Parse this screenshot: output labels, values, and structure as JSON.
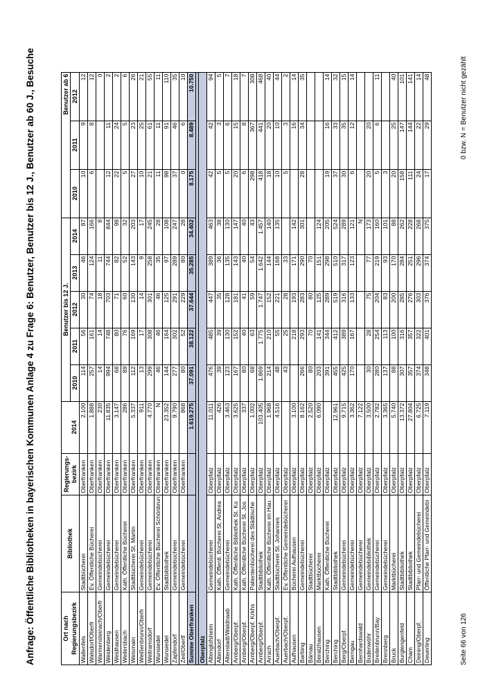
{
  "title": "Anfrage: Öffentliche Bibliotheken in bayerischen Kommunen Anlage 4 zu Frage 6: Benutzer, Benutzer bis 12 J., Benutzer ab 60 J., Besuche",
  "table": {
    "header": {
      "ort": "Ort nach",
      "ort_sub": "Regierungsbezirk",
      "bibliothek": "Bibliothek",
      "regbez": [
        "Regierungs-",
        "bezirk"
      ],
      "group_bis12": "Benutzer bis 12 J.",
      "group_ab60": "Benutzer ab 6",
      "years": [
        "2014",
        "2010",
        "2011",
        "2012",
        "2013",
        "2014",
        "2010",
        "2011",
        "2012"
      ]
    },
    "rows": [
      [
        "Wallenfels",
        "Stadtbücherei",
        "Oberfranken",
        "2.100",
        "114",
        "56",
        "30",
        "46",
        "87",
        "10",
        "9",
        "12"
      ],
      [
        "Walsdorf/Oberfr",
        "Ev. Öffentliche Bücherei",
        "Oberfranken",
        "1.888",
        "257",
        "161",
        "74",
        "124",
        "166",
        "6",
        "8",
        "12"
      ],
      [
        "Warmensteinach/Oberfr",
        "Gemeindebücherei",
        "Oberfranken",
        "230",
        "14",
        "14",
        "18",
        "11",
        "8",
        null,
        null,
        "0"
      ],
      [
        "Weidenberg",
        "Gemeindebücherei",
        "Oberfranken",
        "11.835",
        "994",
        "748",
        "703",
        "744",
        "844",
        "12",
        "11",
        "2"
      ],
      [
        "Weidhausen",
        "Gemeindebücherei",
        "Oberfranken",
        "3.147",
        "68",
        "80",
        "71",
        "82",
        "98",
        "22",
        "24",
        "2"
      ],
      [
        "Weilersbach",
        "Kath. Öffentliche Bücherei",
        "Oberfranken",
        "286",
        "89",
        "76",
        "60",
        "52",
        "32",
        "5",
        "5",
        "6"
      ],
      [
        "Weismain",
        "Stadtbücherei St. Martin",
        "Oberfranken",
        "5.337",
        "112",
        "169",
        "130",
        "143",
        "203",
        "27",
        "23",
        "26"
      ],
      [
        "Weißenbrunn/Oberfr",
        "Gemeindebücherei",
        "Oberfranken",
        "911",
        "13",
        "17",
        "14",
        "9",
        "17",
        "10",
        "25",
        "21"
      ],
      [
        "Weitramsdorf",
        "Gemeindebücherei",
        "Oberfranken",
        "4.770",
        "299",
        "308",
        "301",
        "258",
        "245",
        "21",
        "61",
        "55"
      ],
      [
        "Wunsiedel",
        "Ev. Öffentliche Bücherei Schönbrun",
        "Oberfranken",
        "N",
        "46",
        "46",
        "46",
        "35",
        "28",
        "11",
        "11",
        "11"
      ],
      [
        "Wunsiedel",
        "Stadtbibliothek",
        "Oberfranken",
        "23.352",
        "144",
        "164",
        "125",
        "97",
        "108",
        "98",
        "91",
        "110"
      ],
      [
        "Zapfendorf",
        "Gemeindebücherei",
        "Oberfranken",
        "9.790",
        "277",
        "302",
        "291",
        "289",
        "247",
        "37",
        "46",
        "35"
      ],
      [
        "Zeil/Obertf",
        "Gemeindebücherei",
        "Oberfranken",
        "868",
        "80",
        "52",
        "229",
        "80",
        "28",
        "0",
        "6",
        "10"
      ],
      [
        "Summe Oberfranken",
        null,
        null,
        "1.619.275",
        "37.091",
        "38.122",
        "37.644",
        "35.285",
        "34.402",
        "8.175",
        "8.489",
        "10.750"
      ],
      [
        "Oberpfalz"
      ],
      [
        "Altenglofsheim",
        "Gemeindebücherei",
        "Oberpfalz",
        "11.011",
        "476",
        "485",
        "447",
        "389",
        "463",
        "42",
        "42",
        "94"
      ],
      [
        "Altendorf",
        "Kath. Öffentl. Bücherei St. Andrea",
        "Oberpfalz",
        "426",
        "39",
        "39",
        "35",
        "36",
        "38",
        "5",
        "3",
        "5"
      ],
      [
        "Altenstadt/Waldnaab",
        "Gemeindebücherei",
        "Oberpfalz",
        "3.463",
        "123",
        "130",
        "128",
        "135",
        "130",
        "5",
        "6",
        "7"
      ],
      [
        "Amberg/Oberpf.",
        "Kath. Öffentliche Bibliothek St. Ko",
        "Oberpfalz",
        "3.625",
        "167",
        "152",
        "181",
        "143",
        "147",
        "20",
        "15",
        "18"
      ],
      [
        "Amberg/Oberpf.",
        "Kath. Öffentliche Bücherei St. Jos",
        "Oberpfalz",
        "337",
        "80",
        "40",
        "41",
        "40",
        "40",
        "6",
        "8",
        "7"
      ],
      [
        "Amberg/Oberpf. Krkhs",
        "Patientenbücherei des Städtische",
        "Oberpfalz",
        "1.002",
        "68",
        "63",
        "59",
        "54",
        "43",
        "298",
        "367",
        "308"
      ],
      [
        "Amberg/Oberpf.",
        "Stadtbibliothek",
        "Oberpfalz",
        "103.405",
        "1.869",
        "1.775",
        "1.747",
        "1.642",
        "1.457",
        "418",
        "441",
        "468"
      ],
      [
        "Arrach",
        "Kath. Öffentliche Bücherei im Hau",
        "Oberpfalz",
        "1.968",
        "214",
        "210",
        "152",
        "144",
        "140",
        "18",
        "20",
        "40"
      ],
      [
        "Auerbach/Oberpf.",
        "Stadtbücherei St. Johannes",
        "Oberpfalz",
        "4.516",
        "48",
        "55",
        "221",
        "168",
        "135",
        "10",
        "10",
        "44"
      ],
      [
        "Auerbach/Oberpf.",
        "Ev. Öffentliche Gemeindebücherei",
        "Oberpfalz",
        null,
        "43",
        "25",
        "28",
        "33",
        null,
        "5",
        "3",
        "2"
      ],
      [
        "Aufhausen",
        "Bücherei Aufhausen",
        "Oberpfalz",
        "3.100",
        null,
        "218",
        "193",
        "171",
        "142",
        null,
        "16",
        "14"
      ],
      [
        "Barbing",
        "Gemeindebücherei",
        "Oberpfalz",
        "8.162",
        "266",
        "293",
        "283",
        "290",
        "301",
        "28",
        "34",
        "35"
      ],
      [
        "Bärnau",
        "Stadtbücherei",
        "Oberpfalz",
        "2.520",
        "80",
        "70",
        "80",
        "70",
        null,
        null,
        null,
        null
      ],
      [
        "Beratzhausen",
        "Marktbücherei",
        "Oberpfalz",
        "6.090",
        "203",
        "141",
        "125",
        "151",
        "124",
        null,
        null,
        null
      ],
      [
        "Berching",
        "Kath. Öffentliche Bücherei",
        "Oberpfalz",
        null,
        "391",
        "344",
        "289",
        "298",
        "205",
        "19",
        "16",
        "14"
      ],
      [
        "Berching",
        "Stadtbibliothek",
        "Oberpfalz",
        "12.961",
        "455",
        "412",
        "519",
        "510",
        "524",
        "37",
        "33",
        "32"
      ],
      [
        "Berg/Oberpf.",
        "Gemeindebücherei",
        "Oberpfalz",
        "9.715",
        "425",
        "389",
        "316",
        "317",
        "289",
        "30",
        "35",
        "15"
      ],
      [
        "Berngau",
        "Gemeindebücherei",
        "Oberpfalz",
        "3.362",
        "170",
        "167",
        "133",
        "123",
        "121",
        "6",
        "12",
        "14"
      ],
      [
        "Bernhardswald",
        "Gemeindebücherei",
        "Oberpfalz",
        "7.122",
        null,
        null,
        null,
        null,
        "N",
        null,
        null,
        null
      ],
      [
        "Bodenwöhr",
        "Gemeindebibliothek",
        "Oberpfalz",
        "3.500",
        "30",
        "28",
        "75",
        "77",
        "173",
        "20",
        "20",
        null
      ],
      [
        "Breitenbrunn/Bay",
        "Gemeindebücherei",
        "Oberpfalz",
        "2.782",
        "280",
        "254",
        "204",
        "219",
        "160",
        "5",
        "6",
        "11"
      ],
      [
        "Brennberg",
        "Gemeindebücherei",
        "Oberpfalz",
        "3.365",
        "137",
        "113",
        "83",
        "93",
        "101",
        "3",
        null,
        null
      ],
      [
        "Bruck",
        "Marktbücherei",
        "Oberpfalz",
        "5.740",
        "88",
        "100",
        "200",
        "170",
        "88",
        "20",
        "25",
        "40"
      ],
      [
        "Burglengenfeld",
        "Stadtbibliothek",
        "Oberpfalz",
        "13.372",
        "307",
        "316",
        "285",
        "284",
        "262",
        "158",
        "147",
        "101"
      ],
      [
        "Cham",
        "Stadtbibliothek",
        "Oberpfalz",
        "27.804",
        "357",
        "357",
        "276",
        "251",
        "228",
        "111",
        "144",
        "141"
      ],
      [
        "Deining/Oberpf.",
        "Pfarr- und Gemeindebücherei",
        "Oberpfalz",
        "6.725",
        "374",
        "322",
        "303",
        "296",
        "268",
        "24",
        "22",
        "14"
      ],
      [
        "Deuerling",
        "Öffentliche Pfarr- und Gemeindebi",
        "Oberpfalz",
        "7.119",
        "348",
        "401",
        "376",
        "374",
        "375",
        "17",
        "29",
        "48"
      ]
    ]
  },
  "footer": {
    "page": "Seite 66 von 126",
    "note": "0 bzw. N = Benutzer nicht gezählt"
  }
}
